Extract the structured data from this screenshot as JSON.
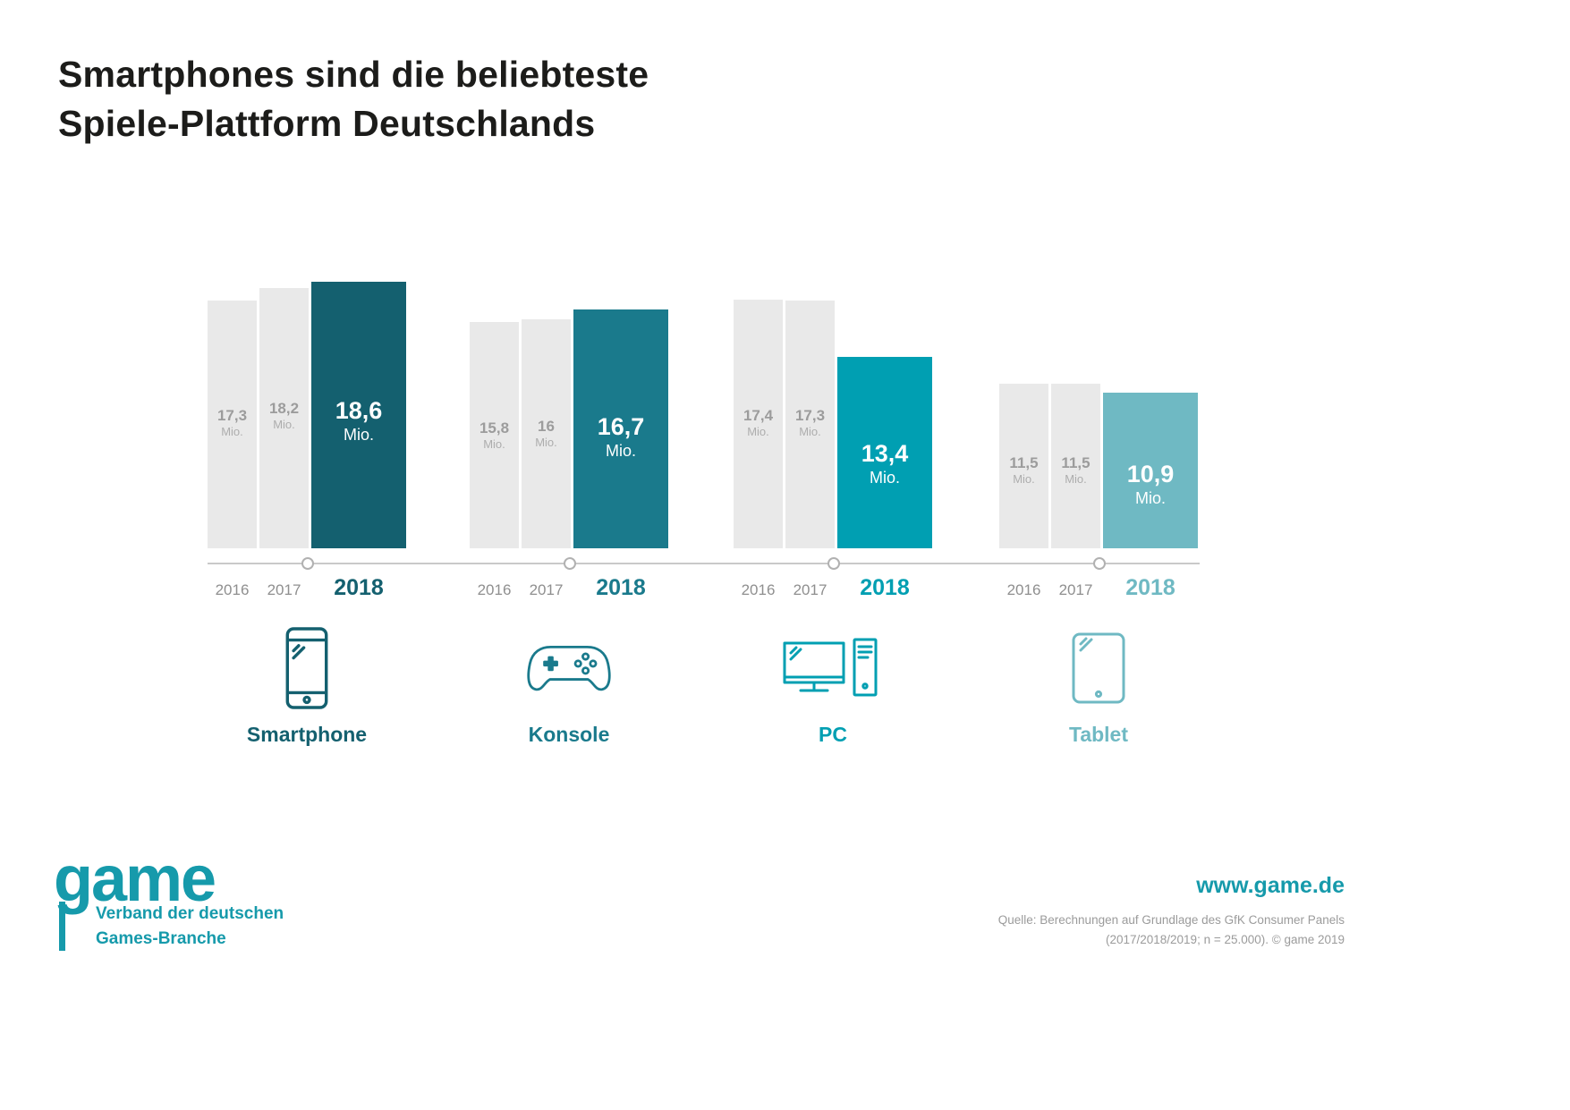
{
  "title": {
    "line1": "Smartphones sind die beliebteste",
    "line2": "Spiele-Plattform Deutschlands"
  },
  "chart_data": {
    "type": "bar",
    "title": "Smartphones sind die beliebteste Spiele-Plattform Deutschlands",
    "unit": "Mio.",
    "years": [
      "2016",
      "2017",
      "2018"
    ],
    "grid": false,
    "legend": "none",
    "groups": [
      {
        "name": "Smartphone",
        "icon": "smartphone-icon",
        "color": "#14606f",
        "values": [
          17.3,
          18.2,
          18.6
        ],
        "labels": [
          "17,3",
          "18,2",
          "18,6"
        ]
      },
      {
        "name": "Konsole",
        "icon": "game-controller-icon",
        "color": "#1a7a8c",
        "values": [
          15.8,
          16,
          16.7
        ],
        "labels": [
          "15,8",
          "16",
          "16,7"
        ]
      },
      {
        "name": "PC",
        "icon": "desktop-pc-icon",
        "color": "#009fb2",
        "values": [
          17.4,
          17.3,
          13.4
        ],
        "labels": [
          "17,4",
          "17,3",
          "13,4"
        ]
      },
      {
        "name": "Tablet",
        "icon": "tablet-icon",
        "color": "#6fb9c3",
        "values": [
          11.5,
          11.5,
          10.9
        ],
        "labels": [
          "11,5",
          "11,5",
          "10,9"
        ]
      }
    ],
    "colors": {
      "bar_past_years": "#e9e9e9",
      "value_text_gray": "#9c9c9c",
      "value_text_highlight": "#ffffff",
      "axis_line": "#c9c9c9"
    }
  },
  "footer": {
    "logo_text": "game",
    "logo_subtitle_line1": "Verband der deutschen",
    "logo_subtitle_line2": "Games-Branche",
    "website": "www.game.de",
    "source_line1": "Quelle: Berechnungen auf Grundlage des GfK Consumer Panels",
    "source_line2": "(2017/2018/2019; n = 25.000). © game 2019",
    "brand_color": "#169aab"
  }
}
